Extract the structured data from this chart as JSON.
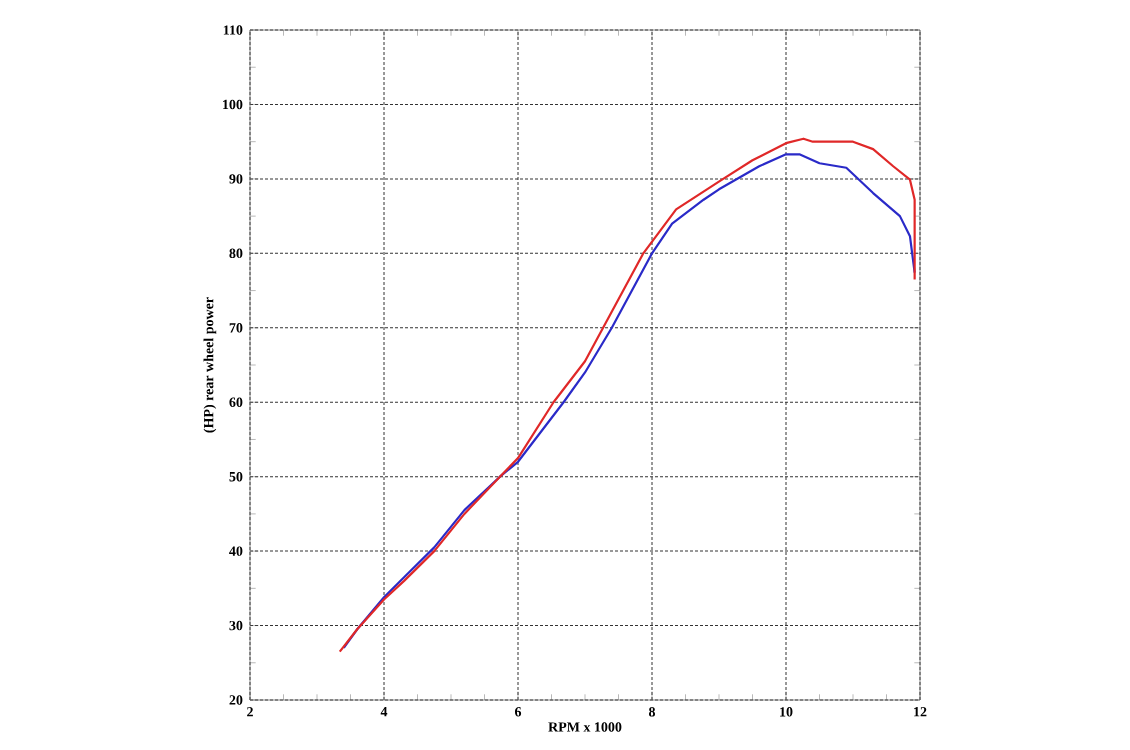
{
  "chart_data": {
    "type": "line",
    "xlabel": "RPM x 1000",
    "ylabel": "(HP) rear wheel power",
    "xlim": [
      2,
      12
    ],
    "ylim": [
      20,
      110
    ],
    "xticks": [
      2,
      4,
      6,
      8,
      10,
      12
    ],
    "yticks": [
      20,
      30,
      40,
      50,
      60,
      70,
      80,
      90,
      100,
      110
    ],
    "grid": true,
    "marker": "none",
    "line_style": "solid",
    "series": [
      {
        "color": "#2a2ac8",
        "x": [
          3.4,
          3.6,
          4.0,
          4.3,
          4.75,
          5.2,
          5.73,
          6.0,
          6.68,
          7.0,
          7.4,
          8.0,
          8.3,
          8.77,
          9.0,
          9.6,
          10.0,
          10.2,
          10.5,
          10.9,
          11.3,
          11.7,
          11.85,
          11.92
        ],
        "values": [
          27,
          29.5,
          33.8,
          36.5,
          40.5,
          45.5,
          50,
          52,
          60,
          64,
          70,
          80,
          84,
          87.2,
          88.6,
          91.7,
          93.3,
          93.3,
          92.1,
          91.5,
          88.1,
          85,
          82.3,
          77.4
        ]
      },
      {
        "color": "#e02828",
        "x": [
          3.34,
          3.6,
          4.0,
          4.3,
          4.75,
          5.2,
          5.73,
          6.0,
          6.53,
          7.0,
          7.27,
          7.87,
          8.36,
          9.01,
          9.5,
          10.0,
          10.26,
          10.4,
          11.0,
          11.3,
          11.6,
          11.85,
          11.92,
          11.92
        ],
        "values": [
          26.5,
          29.5,
          33.5,
          36,
          40,
          45,
          50,
          52.5,
          60,
          65.5,
          70,
          80,
          85.9,
          89.7,
          92.5,
          94.8,
          95.4,
          95,
          95,
          94,
          91.7,
          89.9,
          87.2,
          76.5
        ]
      }
    ]
  }
}
